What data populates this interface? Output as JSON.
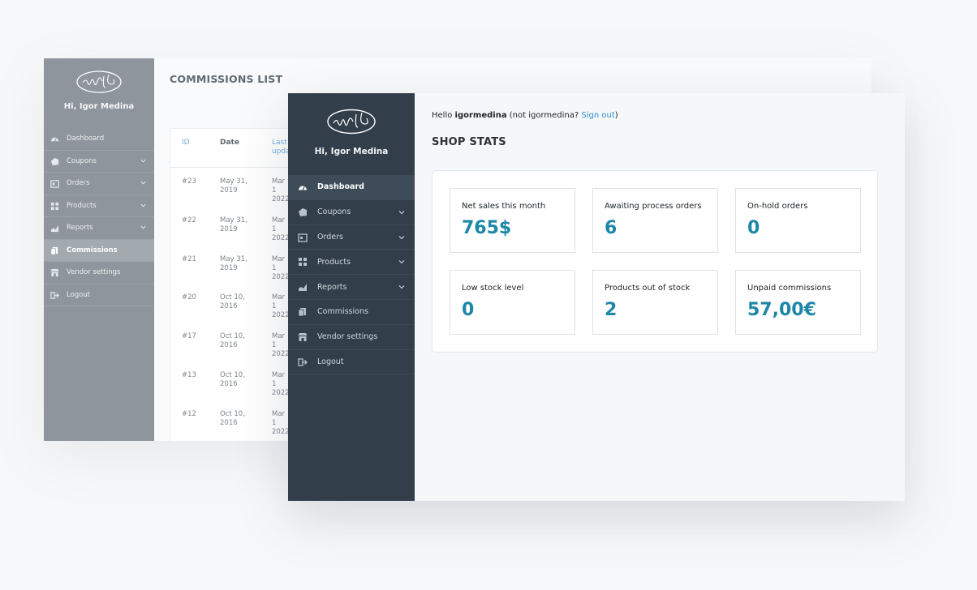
{
  "colors": {
    "accent": "#1d87a8",
    "sidebar_dark": "#323f4b",
    "sidebar_grey": "#8e959c",
    "link": "#2f8fd8"
  },
  "back_window": {
    "greeting": "Hi, Igor Medina",
    "menu": [
      {
        "label": "Dashboard",
        "icon": "dashboard-icon"
      },
      {
        "label": "Coupons",
        "icon": "coupons-icon"
      },
      {
        "label": "Orders",
        "icon": "orders-icon"
      },
      {
        "label": "Products",
        "icon": "products-icon"
      },
      {
        "label": "Reports",
        "icon": "reports-icon"
      },
      {
        "label": "Commissions",
        "icon": "commissions-icon"
      },
      {
        "label": "Vendor settings",
        "icon": "store-icon"
      },
      {
        "label": "Logout",
        "icon": "logout-icon"
      }
    ],
    "title": "COMMISSIONS LIST",
    "table": {
      "headers": {
        "id": "ID",
        "date": "Date",
        "last_updated": "Last upda"
      },
      "rows": [
        {
          "id": "#23",
          "date": "May 31, 2019",
          "updated": "Mar 1 2022"
        },
        {
          "id": "#22",
          "date": "May 31, 2019",
          "updated": "Mar 1 2022"
        },
        {
          "id": "#21",
          "date": "May 31, 2019",
          "updated": "Mar 1 2022"
        },
        {
          "id": "#20",
          "date": "Oct 10, 2016",
          "updated": "Mar 1 2022"
        },
        {
          "id": "#17",
          "date": "Oct 10, 2016",
          "updated": "Mar 1 2022"
        },
        {
          "id": "#13",
          "date": "Oct 10, 2016",
          "updated": "Mar 1 2022"
        },
        {
          "id": "#12",
          "date": "Oct 10, 2016",
          "updated": "Mar 1 2022"
        }
      ]
    }
  },
  "front_window": {
    "greeting": "Hi, Igor Medina",
    "menu": [
      {
        "label": "Dashboard",
        "icon": "dashboard-icon"
      },
      {
        "label": "Coupons",
        "icon": "coupons-icon"
      },
      {
        "label": "Orders",
        "icon": "orders-icon"
      },
      {
        "label": "Products",
        "icon": "products-icon"
      },
      {
        "label": "Reports",
        "icon": "reports-icon"
      },
      {
        "label": "Commissions",
        "icon": "commissions-icon"
      },
      {
        "label": "Vendor settings",
        "icon": "store-icon"
      },
      {
        "label": "Logout",
        "icon": "logout-icon"
      }
    ],
    "hello": {
      "prefix": "Hello ",
      "user": "igormedina",
      "middle": " (not igormedina? ",
      "signout": "Sign out",
      "suffix": ")"
    },
    "section_title": "SHOP STATS",
    "stats": [
      {
        "label": "Net sales this month",
        "value": "765$"
      },
      {
        "label": "Awaiting process orders",
        "value": "6"
      },
      {
        "label": "On-hold orders",
        "value": "0"
      },
      {
        "label": "Low stock level",
        "value": "0"
      },
      {
        "label": "Products out of stock",
        "value": "2"
      },
      {
        "label": "Unpaid commissions",
        "value": "57,00€"
      }
    ]
  }
}
